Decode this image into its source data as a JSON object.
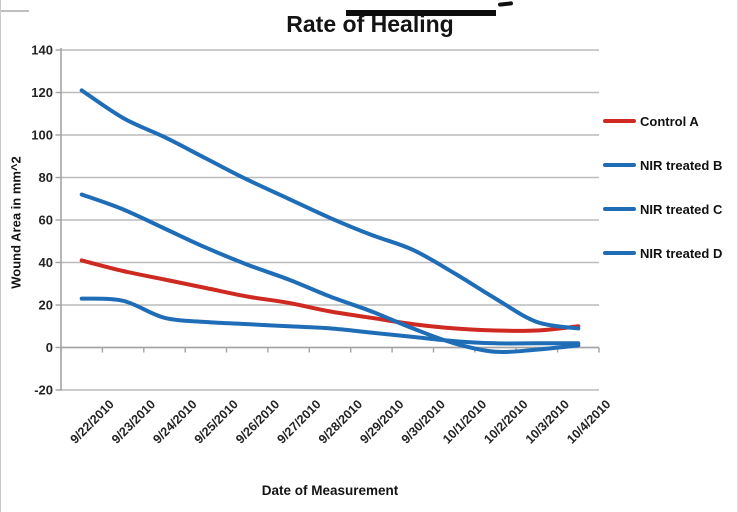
{
  "chart_data": {
    "type": "line",
    "title": "Rate of Healing",
    "xlabel": "Date of Measurement",
    "ylabel": "Wound Area in mm^2",
    "categories": [
      "9/22/2010",
      "9/23/2010",
      "9/24/2010",
      "9/25/2010",
      "9/26/2010",
      "9/27/2010",
      "9/28/2010",
      "9/29/2010",
      "9/30/2010",
      "10/1/2010",
      "10/2/2010",
      "10/3/2010",
      "10/4/2010"
    ],
    "ylim": [
      -20,
      140
    ],
    "yticks": [
      140,
      120,
      100,
      80,
      60,
      40,
      20,
      0,
      -20
    ],
    "grid": "horizontal-only",
    "line_style": "smooth",
    "legend_position": "right-outside",
    "series": [
      {
        "name": "Control A",
        "color": "#cf2a21",
        "values": [
          41,
          36,
          32,
          28,
          24,
          21,
          17,
          14,
          11,
          9,
          8,
          8,
          10
        ]
      },
      {
        "name": "NIR treated B",
        "color": "#1e6db6",
        "values": [
          121,
          108,
          99,
          89,
          79,
          70,
          61,
          53,
          46,
          35,
          23,
          12,
          9
        ]
      },
      {
        "name": "NIR treated C",
        "color": "#1e6db6",
        "values": [
          72,
          65,
          56,
          47,
          39,
          32,
          24,
          17,
          9,
          2,
          -2,
          -1,
          1
        ]
      },
      {
        "name": "NIR treated D",
        "color": "#1e6db6",
        "values": [
          23,
          22,
          14,
          12,
          11,
          10,
          9,
          7,
          5,
          3,
          2,
          2,
          2
        ]
      }
    ],
    "colors": {
      "gridline": "#bcbcbc",
      "axis": "#a3a3a3",
      "tick_text": "#242424",
      "background": "#ffffff"
    }
  }
}
